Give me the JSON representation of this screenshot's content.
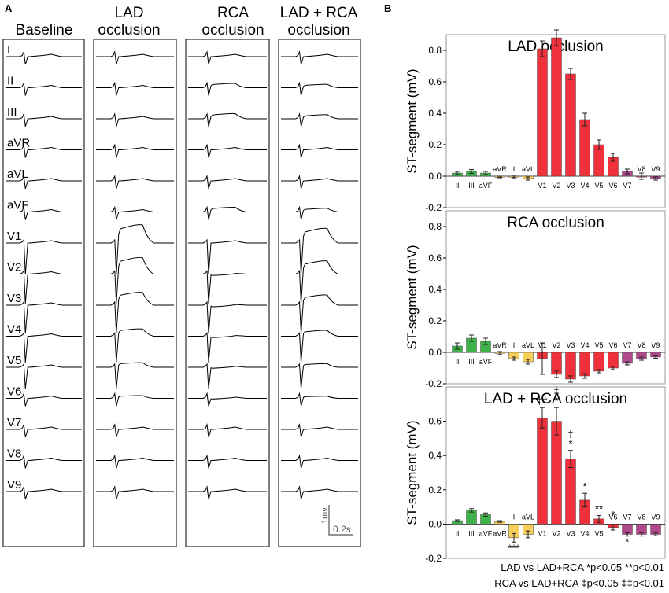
{
  "panel_a": {
    "label": "A",
    "columns": [
      {
        "line1": "Baseline",
        "line2": ""
      },
      {
        "line1": "LAD",
        "line2": "occlusion"
      },
      {
        "line1": "RCA",
        "line2": "occlusion"
      },
      {
        "line1": "LAD + RCA",
        "line2": "occlusion"
      }
    ],
    "leads": [
      "I",
      "II",
      "III",
      "aVR",
      "aVL",
      "aVF",
      "V1",
      "V2",
      "V3",
      "V4",
      "V5",
      "V6",
      "V7",
      "V8",
      "V9"
    ],
    "scale_bar": {
      "voltage": "1mv",
      "time": "0.2s"
    }
  },
  "panel_b": {
    "label": "B",
    "footnote": {
      "line1": "LAD vs LAD+RCA *p<0.05 **p<0.01",
      "line2": "RCA vs LAD+RCA ‡p<0.05 ‡‡p<0.01"
    }
  },
  "colors": {
    "limb_green": "#3fb34a",
    "limb_yellow": "#f5cf5a",
    "precordial_red": "#f0303a",
    "posterior_purple": "#b04a8c"
  },
  "chart_data": [
    {
      "type": "bar",
      "title": "LAD occlusion",
      "ylabel": "ST-segment (mV)",
      "ylim": [
        -0.2,
        0.9
      ],
      "yticks": [
        -0.2,
        0.0,
        0.2,
        0.4,
        0.6,
        0.8
      ],
      "yticklabels": [
        "-0.2",
        "0.0",
        "0.2",
        "0.4",
        "0.6",
        "0.8"
      ],
      "categories": [
        "II",
        "III",
        "aVF",
        "aVR",
        "I",
        "aVL",
        "V1",
        "V2",
        "V3",
        "V4",
        "V5",
        "V6",
        "V7",
        "V8",
        "V9"
      ],
      "values": [
        0.02,
        0.03,
        0.02,
        -0.005,
        -0.005,
        -0.015,
        0.81,
        0.88,
        0.65,
        0.36,
        0.2,
        0.12,
        0.03,
        0.0,
        -0.015
      ],
      "errors": [
        0.01,
        0.012,
        0.01,
        0.005,
        0.006,
        0.01,
        0.05,
        0.05,
        0.035,
        0.04,
        0.03,
        0.025,
        0.015,
        0.02,
        0.01
      ],
      "colors": [
        "green",
        "green",
        "green",
        "yellow",
        "yellow",
        "yellow",
        "red",
        "red",
        "red",
        "red",
        "red",
        "red",
        "purple",
        "purple",
        "purple"
      ],
      "annotations": []
    },
    {
      "type": "bar",
      "title": "RCA occlusion",
      "ylabel": "ST-segment (mV)",
      "ylim": [
        -0.2,
        0.9
      ],
      "yticks": [
        -0.2,
        0.0,
        0.2,
        0.4,
        0.6,
        0.8
      ],
      "yticklabels": [
        "-0.2",
        "0.0",
        "0.2",
        "0.4",
        "0.6",
        "0.8"
      ],
      "categories": [
        "II",
        "III",
        "aVF",
        "aVR",
        "I",
        "aVL",
        "V1",
        "V2",
        "V3",
        "V4",
        "V5",
        "V6",
        "V7",
        "V8",
        "V9"
      ],
      "values": [
        0.04,
        0.09,
        0.07,
        -0.005,
        -0.04,
        -0.06,
        -0.04,
        -0.14,
        -0.17,
        -0.15,
        -0.12,
        -0.1,
        -0.07,
        -0.04,
        -0.03
      ],
      "errors": [
        0.02,
        0.02,
        0.02,
        0.01,
        0.01,
        0.015,
        0.1,
        0.02,
        0.02,
        0.015,
        0.01,
        0.01,
        0.01,
        0.01,
        0.008
      ],
      "colors": [
        "green",
        "green",
        "green",
        "yellow",
        "yellow",
        "yellow",
        "red",
        "red",
        "red",
        "red",
        "red",
        "red",
        "purple",
        "purple",
        "purple"
      ],
      "annotations": []
    },
    {
      "type": "bar",
      "title": "LAD + RCA occlusion",
      "ylabel": "ST-segment (mV)",
      "ylim": [
        -0.2,
        0.8
      ],
      "yticks": [
        -0.2,
        0.0,
        0.2,
        0.4,
        0.6
      ],
      "yticklabels": [
        "-0.2",
        "0.0",
        "0.2",
        "0.4",
        "0.6"
      ],
      "categories": [
        "II",
        "III",
        "aVF",
        "aVR",
        "I",
        "aVL",
        "V1",
        "V2",
        "V3",
        "V4",
        "V5",
        "V6",
        "V7",
        "V8",
        "V9"
      ],
      "values": [
        0.02,
        0.08,
        0.055,
        0.015,
        -0.08,
        -0.06,
        0.62,
        0.6,
        0.38,
        0.14,
        0.03,
        -0.02,
        -0.06,
        -0.06,
        -0.06
      ],
      "errors": [
        0.005,
        0.01,
        0.01,
        0.005,
        0.025,
        0.02,
        0.06,
        0.08,
        0.05,
        0.04,
        0.02,
        0.015,
        0.01,
        0.01,
        0.008
      ],
      "colors": [
        "green",
        "green",
        "green",
        "yellow",
        "yellow",
        "yellow",
        "red",
        "red",
        "red",
        "red",
        "red",
        "red",
        "purple",
        "purple",
        "purple"
      ],
      "annotations": [
        {
          "index": 4,
          "text": "***",
          "position": "below"
        },
        {
          "index": 6,
          "text": "‡‡",
          "position": "above"
        },
        {
          "index": 7,
          "text": "‡",
          "position": "above"
        },
        {
          "index": 7,
          "text": "*",
          "position": "above"
        },
        {
          "index": 8,
          "text": "‡",
          "position": "above"
        },
        {
          "index": 8,
          "text": "*",
          "position": "above"
        },
        {
          "index": 9,
          "text": "*",
          "position": "above"
        },
        {
          "index": 10,
          "text": "**",
          "position": "above"
        },
        {
          "index": 11,
          "text": "*",
          "position": "above"
        },
        {
          "index": 12,
          "text": "*",
          "position": "below"
        }
      ]
    }
  ]
}
